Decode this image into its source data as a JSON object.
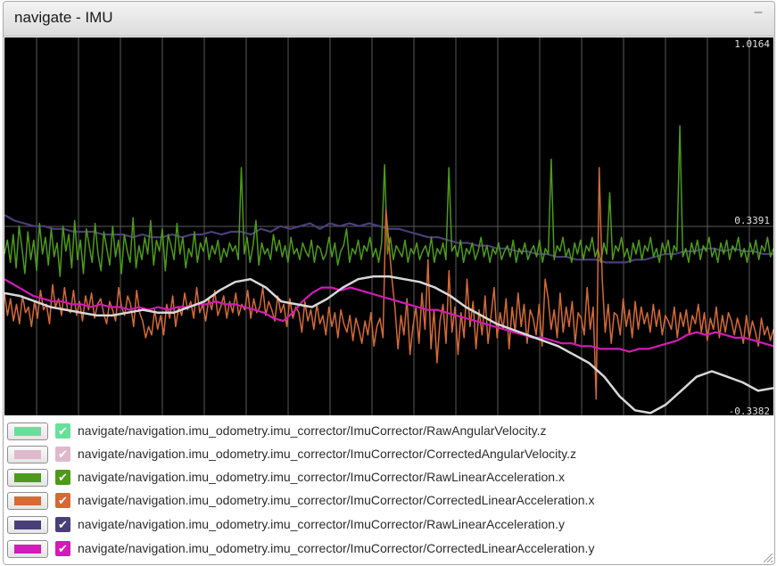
{
  "window": {
    "title": "navigate - IMU",
    "minimize_glyph": "–"
  },
  "colors": {
    "plot_background": "#000000",
    "grid": "#5a5a5a",
    "series": [
      "#66e09a",
      "#e0b8cc",
      "#4d9a1a",
      "#d46a36",
      "#4a3e78",
      "#d41ab8",
      "#d8d8d8"
    ]
  },
  "chart_data": {
    "type": "line",
    "y_tick_labels": [
      "1.0164",
      "0.3391",
      "-0.3382"
    ],
    "ylim": [
      -0.3382,
      1.0164
    ],
    "grid": true,
    "legend_position": "bottom",
    "series": [
      {
        "name": "navigate/navigation.imu_odometry.imu_corrector/ImuCorrector/RawAngularVelocity.z",
        "visible": true,
        "values": [
          0.1,
          0.09,
          0.07,
          0.05,
          0.04,
          0.03,
          0.02,
          0.02,
          0.03,
          0.04,
          0.03,
          0.03,
          0.05,
          0.07,
          0.11,
          0.14,
          0.15,
          0.12,
          0.07,
          0.06,
          0.05,
          0.08,
          0.12,
          0.15,
          0.16,
          0.16,
          0.15,
          0.14,
          0.12,
          0.09,
          0.05,
          0.02,
          -0.01,
          -0.03,
          -0.05,
          -0.07,
          -0.09,
          -0.12,
          -0.15,
          -0.2,
          -0.27,
          -0.32,
          -0.33,
          -0.3,
          -0.25,
          -0.2,
          -0.18,
          -0.2,
          -0.22,
          -0.25,
          -0.24
        ]
      },
      {
        "name": "navigate/navigation.imu_odometry.imu_corrector/ImuCorrector/CorrectedAngularVelocity.z",
        "visible": true,
        "values": [
          0.1,
          0.09,
          0.07,
          0.05,
          0.04,
          0.03,
          0.02,
          0.02,
          0.03,
          0.04,
          0.03,
          0.03,
          0.05,
          0.07,
          0.11,
          0.14,
          0.15,
          0.12,
          0.07,
          0.06,
          0.05,
          0.08,
          0.12,
          0.15,
          0.16,
          0.16,
          0.15,
          0.14,
          0.12,
          0.09,
          0.05,
          0.02,
          -0.01,
          -0.03,
          -0.05,
          -0.07,
          -0.09,
          -0.12,
          -0.15,
          -0.2,
          -0.27,
          -0.32,
          -0.33,
          -0.3,
          -0.25,
          -0.2,
          -0.18,
          -0.2,
          -0.22,
          -0.25,
          -0.24
        ]
      },
      {
        "name": "navigate/navigation.imu_odometry.imu_corrector/ImuCorrector/RawLinearAcceleration.x",
        "visible": true,
        "values": [
          0.24,
          0.29,
          0.21,
          0.31,
          0.19,
          0.34,
          0.26,
          0.17,
          0.32,
          0.22,
          0.29,
          0.18,
          0.35,
          0.24,
          0.3,
          0.2,
          0.33,
          0.23,
          0.28,
          0.16,
          0.34,
          0.25,
          0.31,
          0.19,
          0.36,
          0.22,
          0.29,
          0.17,
          0.33,
          0.27,
          0.21,
          0.35,
          0.24,
          0.18,
          0.32,
          0.26,
          0.2,
          0.34,
          0.23,
          0.29,
          0.17,
          0.31,
          0.25,
          0.21,
          0.37,
          0.19,
          0.27,
          0.22,
          0.3,
          0.24,
          0.36,
          0.2,
          0.29,
          0.25,
          0.33,
          0.18,
          0.31,
          0.27,
          0.22,
          0.35,
          0.24,
          0.3,
          0.19,
          0.26,
          0.23,
          0.32,
          0.21,
          0.28,
          0.25,
          0.3,
          0.22,
          0.27,
          0.24,
          0.29,
          0.21,
          0.26,
          0.23,
          0.28,
          0.25,
          0.27,
          0.22,
          0.55,
          0.24,
          0.3,
          0.21,
          0.27,
          0.36,
          0.2,
          0.28,
          0.24,
          0.26,
          0.22,
          0.31,
          0.25,
          0.29,
          0.23,
          0.27,
          0.21,
          0.3,
          0.24,
          0.26,
          0.22,
          0.28,
          0.25,
          0.23,
          0.29,
          0.21,
          0.27,
          0.26,
          0.22,
          0.24,
          0.3,
          0.23,
          0.28,
          0.2,
          0.25,
          0.27,
          0.33,
          0.21,
          0.26,
          0.24,
          0.29,
          0.22,
          0.27,
          0.25,
          0.3,
          0.23,
          0.26,
          0.21,
          0.28,
          0.56,
          0.24,
          0.3,
          0.22,
          0.27,
          0.25,
          0.23,
          0.29,
          0.21,
          0.26,
          0.24,
          0.28,
          0.22,
          0.25,
          0.27,
          0.23,
          0.3,
          0.21,
          0.26,
          0.24,
          0.28,
          0.22,
          0.55,
          0.25,
          0.27,
          0.23,
          0.29,
          0.21,
          0.26,
          0.24,
          0.28,
          0.22,
          0.25,
          0.3,
          0.23,
          0.27,
          0.21,
          0.26,
          0.24,
          0.28,
          0.22,
          0.25,
          0.27,
          0.23,
          0.29,
          0.21,
          0.26,
          0.24,
          0.28,
          0.22,
          0.25,
          0.27,
          0.23,
          0.29,
          0.21,
          0.26,
          0.24,
          0.58,
          0.22,
          0.27,
          0.25,
          0.3,
          0.23,
          0.26,
          0.21,
          0.28,
          0.24,
          0.29,
          0.22,
          0.27,
          0.25,
          0.3,
          0.23,
          0.26,
          0.21,
          0.28,
          0.24,
          0.46,
          0.22,
          0.27,
          0.25,
          0.3,
          0.23,
          0.26,
          0.21,
          0.28,
          0.24,
          0.29,
          0.22,
          0.27,
          0.25,
          0.3,
          0.23,
          0.26,
          0.21,
          0.28,
          0.24,
          0.29,
          0.22,
          0.27,
          0.25,
          0.7,
          0.23,
          0.26,
          0.21,
          0.28,
          0.24,
          0.29,
          0.22,
          0.27,
          0.25,
          0.3,
          0.23,
          0.26,
          0.21,
          0.28,
          0.24,
          0.29,
          0.22,
          0.27,
          0.25,
          0.3,
          0.23,
          0.26,
          0.21,
          0.28,
          0.24,
          0.29,
          0.22,
          0.27,
          0.25,
          0.3,
          0.23,
          0.26
        ]
      },
      {
        "name": "navigate/navigation.imu_odometry.imu_corrector/ImuCorrector/CorrectedLinearAcceleration.x",
        "visible": true,
        "values": [
          0.1,
          0.02,
          0.08,
          0.0,
          0.06,
          -0.01,
          0.09,
          0.03,
          0.05,
          -0.02,
          0.07,
          0.01,
          0.11,
          0.04,
          0.06,
          -0.01,
          0.13,
          0.05,
          0.08,
          0.02,
          0.12,
          0.04,
          0.03,
          0.11,
          0.02,
          0.07,
          0.0,
          0.09,
          0.04,
          0.1,
          0.01,
          0.06,
          0.08,
          0.03,
          -0.01,
          0.07,
          0.04,
          0.0,
          0.12,
          0.05,
          0.02,
          0.09,
          0.06,
          -0.02,
          0.11,
          0.03,
          0.0,
          -0.06,
          -0.02,
          -0.05,
          0.04,
          -0.03,
          0.02,
          -0.05,
          0.06,
          0.01,
          0.09,
          -0.02,
          0.05,
          0.02,
          0.1,
          0.04,
          0.07,
          0.01,
          0.12,
          0.03,
          0.06,
          0.0,
          0.08,
          0.04,
          0.11,
          0.02,
          0.05,
          0.09,
          0.01,
          0.07,
          0.03,
          0.1,
          0.02,
          0.06,
          0.04,
          0.11,
          0.01,
          0.08,
          0.03,
          0.05,
          0.12,
          0.02,
          0.07,
          0.04,
          0.0,
          0.09,
          0.03,
          0.06,
          -0.02,
          0.08,
          0.01,
          0.05,
          0.03,
          -0.04,
          0.07,
          0.0,
          0.04,
          -0.03,
          0.06,
          -0.01,
          0.02,
          -0.05,
          0.05,
          -0.02,
          0.03,
          -0.06,
          0.04,
          -0.01,
          -0.04,
          0.02,
          -0.07,
          0.01,
          -0.03,
          -0.08,
          0.0,
          -0.05,
          0.03,
          -0.09,
          -0.02,
          0.01,
          -0.06,
          0.4,
          0.28,
          0.15,
          0.05,
          -0.1,
          0.02,
          -0.05,
          0.08,
          -0.12,
          -0.02,
          0.05,
          -0.08,
          0.1,
          -0.03,
          0.22,
          -0.1,
          0.04,
          -0.15,
          0.0,
          0.06,
          -0.08,
          0.18,
          -0.04,
          0.05,
          -0.12,
          0.03,
          -0.06,
          0.15,
          -0.02,
          0.07,
          -0.1,
          0.04,
          -0.05,
          0.09,
          -0.08,
          0.02,
          0.12,
          -0.06,
          0.03,
          -0.03,
          0.08,
          -0.1,
          0.05,
          -0.04,
          0.1,
          -0.02,
          0.06,
          -0.08,
          0.04,
          0.01,
          -0.05,
          0.06,
          -0.09,
          0.15,
          0.08,
          -0.03,
          0.04,
          -0.06,
          0.1,
          -0.04,
          0.05,
          -0.02,
          0.07,
          -0.08,
          0.03,
          0.01,
          -0.05,
          0.12,
          -0.03,
          0.05,
          -0.28,
          0.55,
          0.15,
          -0.04,
          0.06,
          -0.08,
          0.03,
          0.02,
          -0.05,
          0.08,
          -0.02,
          0.04,
          -0.06,
          0.07,
          -0.03,
          0.05,
          -0.01,
          0.03,
          -0.04,
          0.06,
          -0.02,
          0.04,
          -0.05,
          0.02,
          0.0,
          -0.03,
          0.05,
          -0.06,
          0.03,
          -0.02,
          0.04,
          -0.05,
          0.02,
          -0.01,
          0.06,
          -0.04,
          0.03,
          -0.07,
          0.01,
          -0.03,
          0.05,
          -0.06,
          0.02,
          -0.04,
          0.03,
          0.0,
          -0.05,
          0.01,
          -0.03,
          -0.08,
          0.02,
          -0.06,
          0.0,
          -0.04,
          -0.09,
          0.01,
          -0.05,
          -0.02,
          -0.07,
          -0.03
        ]
      },
      {
        "name": "navigate/navigation.imu_odometry.imu_corrector/ImuCorrector/RawLinearAcceleration.y",
        "visible": true,
        "values": [
          0.38,
          0.36,
          0.35,
          0.34,
          0.34,
          0.33,
          0.33,
          0.32,
          0.32,
          0.32,
          0.31,
          0.31,
          0.31,
          0.3,
          0.31,
          0.3,
          0.3,
          0.31,
          0.3,
          0.31,
          0.31,
          0.32,
          0.31,
          0.32,
          0.32,
          0.31,
          0.33,
          0.32,
          0.34,
          0.33,
          0.34,
          0.35,
          0.33,
          0.35,
          0.34,
          0.35,
          0.34,
          0.35,
          0.34,
          0.33,
          0.33,
          0.32,
          0.31,
          0.3,
          0.3,
          0.29,
          0.28,
          0.28,
          0.27,
          0.27,
          0.26,
          0.26,
          0.25,
          0.25,
          0.24,
          0.24,
          0.23,
          0.23,
          0.22,
          0.22,
          0.22,
          0.21,
          0.21,
          0.21,
          0.22,
          0.22,
          0.23,
          0.24,
          0.24,
          0.25,
          0.25,
          0.26,
          0.26,
          0.25,
          0.26,
          0.25,
          0.25,
          0.24,
          0.24
        ]
      },
      {
        "name": "navigate/navigation.imu_odometry.imu_corrector/ImuCorrector/CorrectedLinearAcceleration.y",
        "visible": true,
        "values": [
          0.15,
          0.13,
          0.11,
          0.09,
          0.08,
          0.07,
          0.07,
          0.06,
          0.06,
          0.05,
          0.06,
          0.05,
          0.05,
          0.04,
          0.05,
          0.04,
          0.05,
          0.04,
          0.05,
          0.05,
          0.06,
          0.06,
          0.07,
          0.06,
          0.06,
          0.05,
          0.04,
          0.03,
          0.01,
          0.0,
          0.03,
          0.07,
          0.1,
          0.12,
          0.12,
          0.11,
          0.12,
          0.11,
          0.1,
          0.09,
          0.08,
          0.07,
          0.06,
          0.05,
          0.04,
          0.04,
          0.03,
          0.02,
          0.01,
          0.0,
          -0.01,
          -0.02,
          -0.03,
          -0.04,
          -0.05,
          -0.06,
          -0.06,
          -0.07,
          -0.08,
          -0.08,
          -0.09,
          -0.09,
          -0.1,
          -0.1,
          -0.1,
          -0.11,
          -0.1,
          -0.1,
          -0.09,
          -0.08,
          -0.07,
          -0.05,
          -0.04,
          -0.05,
          -0.04,
          -0.05,
          -0.06,
          -0.06,
          -0.07,
          -0.08,
          -0.09
        ]
      }
    ]
  },
  "legend": [
    {
      "swatch": "#66e09a",
      "checkbox": "#66e09a",
      "checked": true,
      "label": "navigate/navigation.imu_odometry.imu_corrector/ImuCorrector/RawAngularVelocity.z"
    },
    {
      "swatch": "#e0b8cc",
      "checkbox": "#e0b8cc",
      "checked": true,
      "label": "navigate/navigation.imu_odometry.imu_corrector/ImuCorrector/CorrectedAngularVelocity.z"
    },
    {
      "swatch": "#4d9a1a",
      "checkbox": "#4d9a1a",
      "checked": true,
      "label": "navigate/navigation.imu_odometry.imu_corrector/ImuCorrector/RawLinearAcceleration.x"
    },
    {
      "swatch": "#d46a36",
      "checkbox": "#d46a36",
      "checked": true,
      "label": "navigate/navigation.imu_odometry.imu_corrector/ImuCorrector/CorrectedLinearAcceleration.x"
    },
    {
      "swatch": "#4a3e78",
      "checkbox": "#4a3e78",
      "checked": true,
      "label": "navigate/navigation.imu_odometry.imu_corrector/ImuCorrector/RawLinearAcceleration.y"
    },
    {
      "swatch": "#d41ab8",
      "checkbox": "#d41ab8",
      "checked": true,
      "label": "navigate/navigation.imu_odometry.imu_corrector/ImuCorrector/CorrectedLinearAcceleration.y"
    }
  ]
}
